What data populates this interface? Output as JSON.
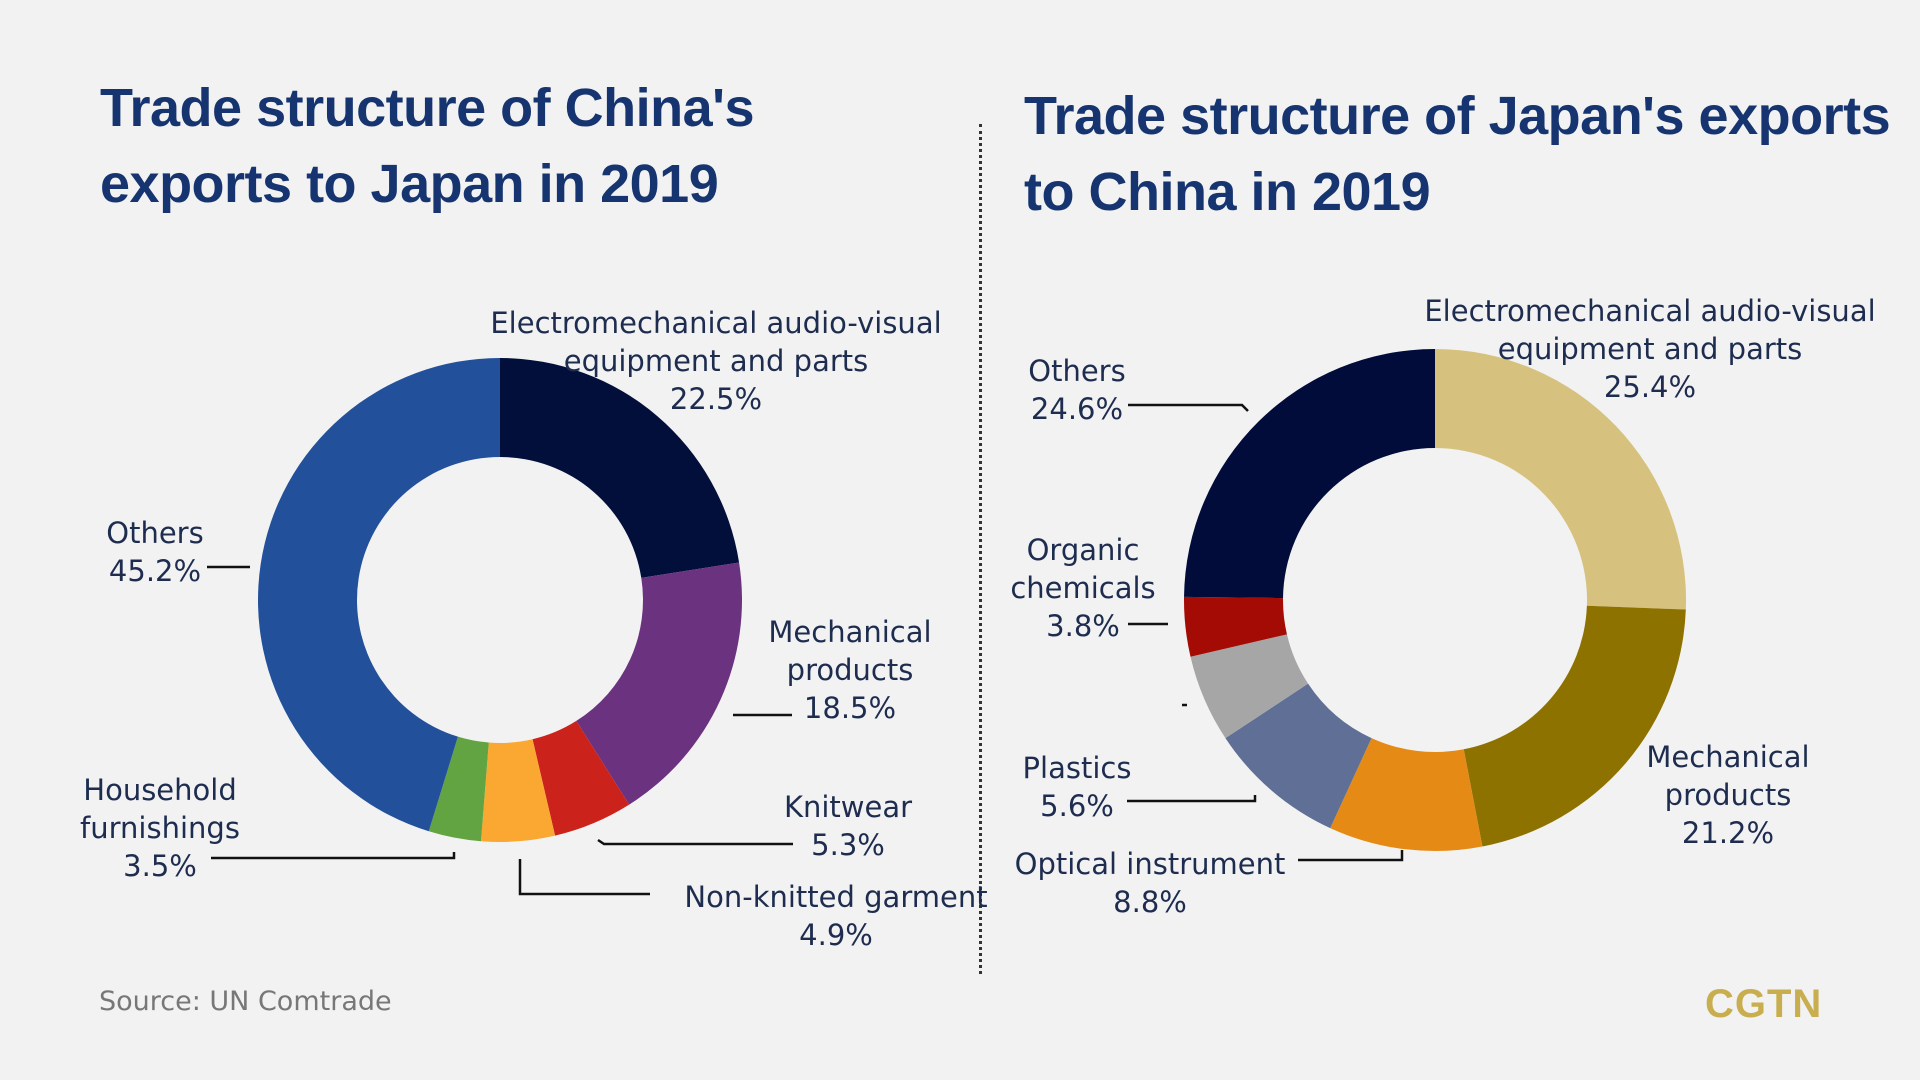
{
  "chart_data": [
    {
      "type": "pie",
      "donut": true,
      "title": "Trade structure of China's exports to Japan in 2019",
      "slices": [
        {
          "label": [
            "Electromechanical audio-visual",
            "equipment and parts"
          ],
          "value": 22.5,
          "value_text": "22.5%",
          "color": "#020f3b"
        },
        {
          "label": [
            "Mechanical",
            "products"
          ],
          "value": 18.5,
          "value_text": "18.5%",
          "color": "#6b327f"
        },
        {
          "label": [
            "Knitwear"
          ],
          "value": 5.3,
          "value_text": "5.3%",
          "color": "#cc221c"
        },
        {
          "label": [
            "Non-knitted garment"
          ],
          "value": 4.9,
          "value_text": "4.9%",
          "color": "#fba832"
        },
        {
          "label": [
            "Household",
            "furnishings"
          ],
          "value": 3.5,
          "value_text": "3.5%",
          "color": "#62a441"
        },
        {
          "label": [
            "Others"
          ],
          "value": 45.2,
          "value_text": "45.2%",
          "color": "#23509a"
        }
      ]
    },
    {
      "type": "pie",
      "donut": true,
      "title": "Trade structure of Japan's exports to China in 2019",
      "slices": [
        {
          "label": [
            "Electromechanical audio-visual",
            "equipment and parts"
          ],
          "value": 25.4,
          "value_text": "25.4%",
          "color": "#d6c27e"
        },
        {
          "label": [
            "Mechanical",
            "products"
          ],
          "value": 21.2,
          "value_text": "21.2%",
          "color": "#8e7200"
        },
        {
          "label": [],
          "value": 9.8,
          "value_text": "",
          "color": "#e68a16"
        },
        {
          "label": [
            "Optical instrument"
          ],
          "value": 8.8,
          "value_text": "8.8%",
          "color": "#5f6f95"
        },
        {
          "label": [
            "Plastics"
          ],
          "value": 5.6,
          "value_text": "5.6%",
          "color": "#a6a6a6"
        },
        {
          "label": [
            "Organic",
            "chemicals"
          ],
          "value": 3.8,
          "value_text": "3.8%",
          "color": "#a40b05"
        },
        {
          "label": [
            "Others"
          ],
          "value": 24.6,
          "value_text": "24.6%",
          "color": "#010c3a"
        }
      ]
    }
  ],
  "source": "Source: UN Comtrade",
  "logo": "CGTN"
}
